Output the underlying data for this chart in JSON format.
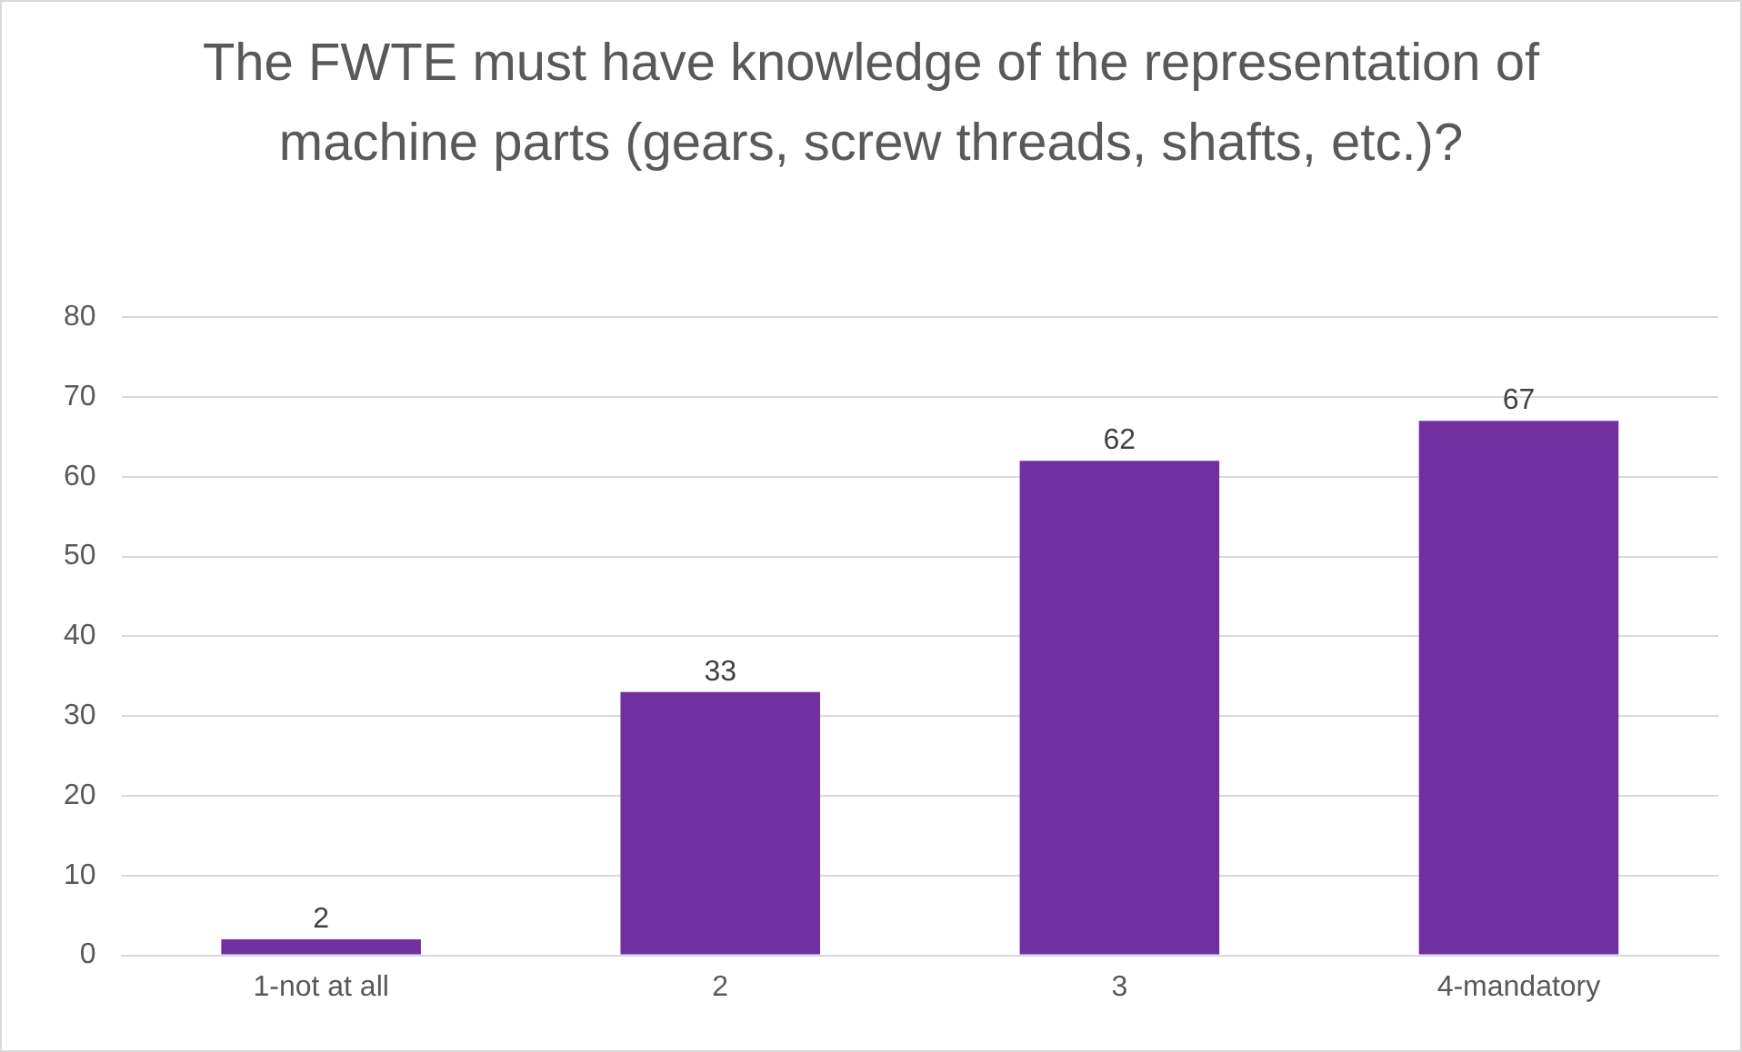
{
  "chart_data": {
    "type": "bar",
    "title": "The FWTE must have knowledge of the representation of machine parts (gears, screw threads, shafts, etc.)?",
    "categories": [
      "1-not at all",
      "2",
      "3",
      "4-mandatory"
    ],
    "values": [
      2,
      33,
      62,
      67
    ],
    "color": "#7030a0",
    "ylim": [
      0,
      80
    ],
    "yticks": [
      0,
      10,
      20,
      30,
      40,
      50,
      60,
      70,
      80
    ],
    "grid": "y",
    "data_labels": true
  }
}
